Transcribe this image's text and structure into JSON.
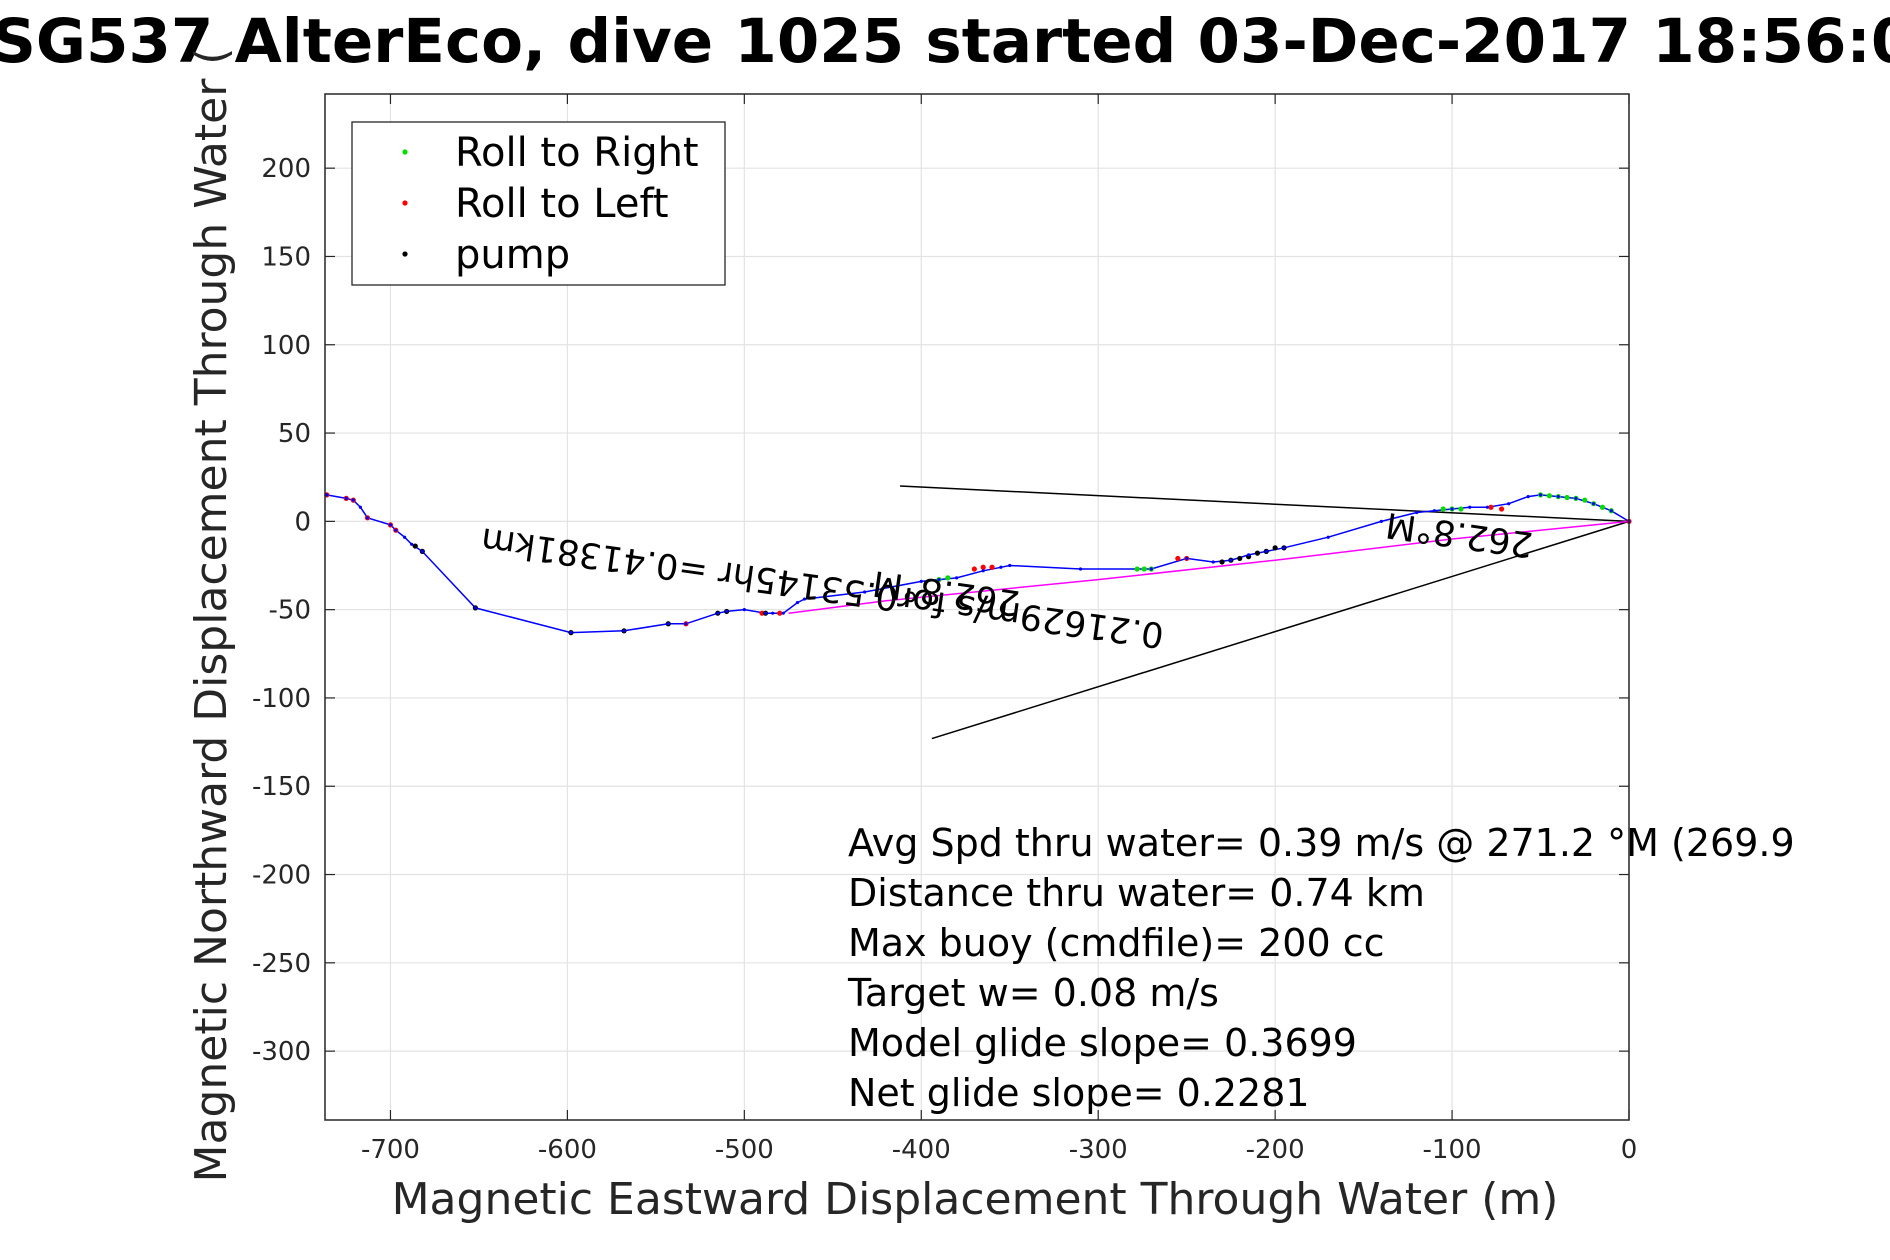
{
  "chart_data": {
    "type": "line",
    "title": "SG537 AlterEco, dive 1025 started 03-Dec-2017 18:56:0",
    "xlabel": "Magnetic Eastward Displacement Through Water (m)",
    "ylabel": "Magnetic Northward Displacement Through Water (",
    "xlim": [
      -737,
      0
    ],
    "ylim": [
      -339,
      242
    ],
    "xticks": [
      -700,
      -600,
      -500,
      -400,
      -300,
      -200,
      -100,
      0
    ],
    "yticks": [
      200,
      150,
      100,
      50,
      0,
      -50,
      -100,
      -150,
      -200,
      -250,
      -300
    ],
    "grid": true,
    "legend": {
      "position": "top-left",
      "entries": [
        {
          "label": "Roll to Right",
          "color": "#00dd00"
        },
        {
          "label": "Roll to Left",
          "color": "#ff0000"
        },
        {
          "label": "pump",
          "color": "#000000"
        }
      ]
    },
    "track": {
      "name": "track",
      "color": "#0000ff",
      "x": [
        0,
        -10,
        -20,
        -30,
        -40,
        -50,
        -57,
        -68,
        -80,
        -90,
        -100,
        -110,
        -120,
        -140,
        -170,
        -195,
        -205,
        -215,
        -225,
        -235,
        -250,
        -270,
        -310,
        -350,
        -355,
        -365,
        -380,
        -390,
        -400,
        -432,
        -466,
        -470,
        -478,
        -484,
        -488,
        -500,
        -510,
        -515,
        -533,
        -543,
        -568,
        -598,
        -652,
        -682,
        -688,
        -692,
        -697,
        -700,
        -713,
        -717,
        -721,
        -725,
        -736
      ],
      "y": [
        0,
        6,
        10,
        13,
        14,
        15,
        14,
        10,
        8,
        8,
        7,
        6,
        5,
        0,
        -9,
        -15,
        -17,
        -19,
        -22,
        -23,
        -21,
        -27,
        -27,
        -25,
        -26,
        -28,
        -32,
        -33,
        -34,
        -40,
        -44,
        -46,
        -52,
        -52,
        -52,
        -50,
        -51,
        -52,
        -58,
        -58,
        -62,
        -63,
        -49,
        -17,
        -13,
        -9,
        -5,
        -2,
        2,
        8,
        12,
        13,
        15
      ]
    },
    "glide": {
      "name": "glide",
      "color": "#ff00ff",
      "x": [
        0,
        -100,
        -200,
        -300,
        -420,
        -475
      ],
      "y": [
        0,
        -10,
        -22,
        -33,
        -45,
        -52
      ]
    },
    "roll_right": {
      "x": [
        -10,
        -15,
        -20,
        -25,
        -30,
        -35,
        -40,
        -45,
        -50,
        -95,
        -100,
        -105,
        -270,
        -274,
        -278,
        -385,
        -390
      ],
      "y": [
        6,
        8,
        10,
        12,
        13,
        13.5,
        14,
        14.5,
        15,
        7,
        7,
        7,
        -27,
        -27,
        -27,
        -32,
        -33
      ]
    },
    "roll_left": {
      "x": [
        0,
        -72,
        -78,
        -250,
        -255,
        -360,
        -365,
        -370,
        -480,
        -490,
        -533,
        -697,
        -700,
        -713,
        -721,
        -725,
        -736
      ],
      "y": [
        0,
        7,
        8,
        -21,
        -21,
        -26,
        -26,
        -27,
        -52,
        -52,
        -58,
        -5,
        -2,
        2,
        12,
        13,
        15
      ]
    },
    "pump": {
      "x": [
        -195,
        -200,
        -205,
        -210,
        -215,
        -220,
        -225,
        -230,
        -488,
        -510,
        -515,
        -543,
        -568,
        -598,
        -652,
        -682,
        -686
      ],
      "y": [
        -15,
        -15,
        -17,
        -18,
        -20,
        -21,
        -22,
        -23,
        -52,
        -51,
        -52,
        -58,
        -62,
        -63,
        -49,
        -17,
        -14
      ]
    },
    "reference_lines": [
      {
        "x": [
          0,
          -412
        ],
        "y": [
          0,
          20
        ]
      },
      {
        "x": [
          0,
          -394
        ],
        "y": [
          0,
          -123
        ]
      }
    ],
    "rotated_annotations": [
      {
        "text": "0.21629m/s for0.53145hr =0.41381km",
        "x": -455,
        "y": -31,
        "angle_deg": 188
      },
      {
        "text": "262.8°M",
        "x": -385,
        "y": -34,
        "angle_deg": 188
      },
      {
        "text": "262.8°M",
        "x": -95,
        "y": -1,
        "angle_deg": 188
      }
    ],
    "annotations": [
      "Avg Spd thru water=  0.39 m/s @ 271.2 °M (269.9",
      "Distance thru water=  0.74 km",
      "Max buoy (cmdfile)= 200 cc",
      "Target w= 0.08 m/s",
      "Model glide slope= 0.3699",
      "Net glide slope= 0.2281"
    ]
  }
}
